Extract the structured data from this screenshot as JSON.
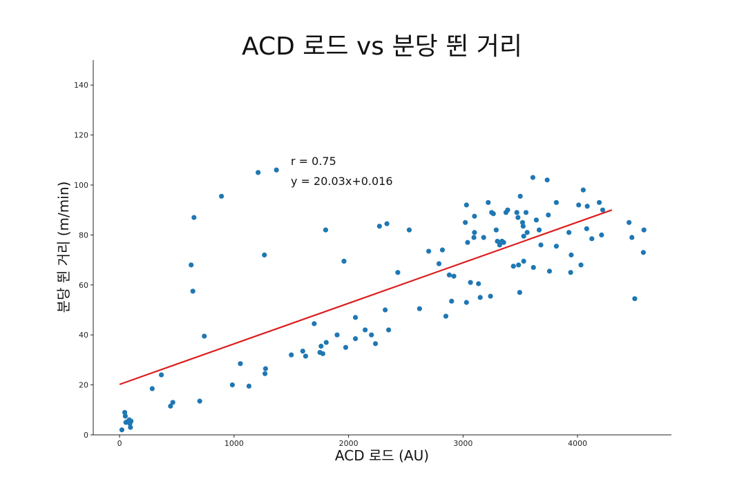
{
  "chart_data": {
    "type": "scatter",
    "title": "ACD 로드 vs 분당 뛴 거리",
    "xlabel": "ACD 로드 (AU)",
    "ylabel": "분당 뛴 거리 (m/min)",
    "xlim": [
      -230,
      4820
    ],
    "ylim": [
      0,
      150
    ],
    "xticks": [
      0,
      1000,
      2000,
      3000,
      4000
    ],
    "yticks": [
      0,
      20,
      40,
      60,
      80,
      100,
      120,
      140
    ],
    "grid": false,
    "point_color": "#1f77b4",
    "fit_color": "#dd1c1c",
    "annotations": [
      "r = 0.75",
      "y = 20.03x+0.016"
    ],
    "fit_line": {
      "x": [
        0,
        4300
      ],
      "y": [
        20.2,
        90.0
      ]
    },
    "points": [
      {
        "x": 20,
        "y": 2
      },
      {
        "x": 45,
        "y": 9
      },
      {
        "x": 50,
        "y": 7.5
      },
      {
        "x": 55,
        "y": 5
      },
      {
        "x": 75,
        "y": 5.5
      },
      {
        "x": 85,
        "y": 6
      },
      {
        "x": 90,
        "y": 4.5
      },
      {
        "x": 95,
        "y": 3
      },
      {
        "x": 100,
        "y": 5.5
      },
      {
        "x": 285,
        "y": 18.5
      },
      {
        "x": 365,
        "y": 24
      },
      {
        "x": 445,
        "y": 11.5
      },
      {
        "x": 465,
        "y": 13
      },
      {
        "x": 625,
        "y": 68
      },
      {
        "x": 640,
        "y": 57.5
      },
      {
        "x": 650,
        "y": 87
      },
      {
        "x": 700,
        "y": 13.5
      },
      {
        "x": 740,
        "y": 39.5
      },
      {
        "x": 890,
        "y": 95.5
      },
      {
        "x": 985,
        "y": 20
      },
      {
        "x": 1055,
        "y": 28.5
      },
      {
        "x": 1130,
        "y": 19.5
      },
      {
        "x": 1210,
        "y": 105
      },
      {
        "x": 1265,
        "y": 72
      },
      {
        "x": 1270,
        "y": 24.5
      },
      {
        "x": 1275,
        "y": 26.5
      },
      {
        "x": 1370,
        "y": 106
      },
      {
        "x": 1500,
        "y": 32
      },
      {
        "x": 1600,
        "y": 33.5
      },
      {
        "x": 1625,
        "y": 31.5
      },
      {
        "x": 1700,
        "y": 44.5
      },
      {
        "x": 1750,
        "y": 33
      },
      {
        "x": 1760,
        "y": 35.5
      },
      {
        "x": 1775,
        "y": 32.5
      },
      {
        "x": 1800,
        "y": 82
      },
      {
        "x": 1805,
        "y": 37
      },
      {
        "x": 1900,
        "y": 40
      },
      {
        "x": 1960,
        "y": 69.5
      },
      {
        "x": 1975,
        "y": 35
      },
      {
        "x": 2060,
        "y": 47
      },
      {
        "x": 2060,
        "y": 38.5
      },
      {
        "x": 2145,
        "y": 42
      },
      {
        "x": 2200,
        "y": 40
      },
      {
        "x": 2235,
        "y": 36.5
      },
      {
        "x": 2270,
        "y": 83.5
      },
      {
        "x": 2320,
        "y": 50
      },
      {
        "x": 2335,
        "y": 84.5
      },
      {
        "x": 2350,
        "y": 42
      },
      {
        "x": 2430,
        "y": 65
      },
      {
        "x": 2530,
        "y": 82
      },
      {
        "x": 2620,
        "y": 50.5
      },
      {
        "x": 2700,
        "y": 73.5
      },
      {
        "x": 2790,
        "y": 68.5
      },
      {
        "x": 2820,
        "y": 74
      },
      {
        "x": 2850,
        "y": 47.5
      },
      {
        "x": 2880,
        "y": 64
      },
      {
        "x": 2900,
        "y": 53.5
      },
      {
        "x": 2920,
        "y": 63.5
      },
      {
        "x": 3020,
        "y": 85
      },
      {
        "x": 3030,
        "y": 53
      },
      {
        "x": 3030,
        "y": 92
      },
      {
        "x": 3040,
        "y": 77
      },
      {
        "x": 3065,
        "y": 61
      },
      {
        "x": 3095,
        "y": 79
      },
      {
        "x": 3100,
        "y": 81
      },
      {
        "x": 3100,
        "y": 87.5
      },
      {
        "x": 3135,
        "y": 60.5
      },
      {
        "x": 3150,
        "y": 55
      },
      {
        "x": 3180,
        "y": 79
      },
      {
        "x": 3220,
        "y": 93
      },
      {
        "x": 3240,
        "y": 55.5
      },
      {
        "x": 3250,
        "y": 89
      },
      {
        "x": 3265,
        "y": 88.5
      },
      {
        "x": 3290,
        "y": 82
      },
      {
        "x": 3300,
        "y": 77.5
      },
      {
        "x": 3320,
        "y": 76
      },
      {
        "x": 3340,
        "y": 77.5
      },
      {
        "x": 3355,
        "y": 77
      },
      {
        "x": 3375,
        "y": 89
      },
      {
        "x": 3390,
        "y": 90
      },
      {
        "x": 3440,
        "y": 67.5
      },
      {
        "x": 3470,
        "y": 89
      },
      {
        "x": 3480,
        "y": 87
      },
      {
        "x": 3485,
        "y": 68
      },
      {
        "x": 3495,
        "y": 57
      },
      {
        "x": 3500,
        "y": 95.5
      },
      {
        "x": 3520,
        "y": 85
      },
      {
        "x": 3525,
        "y": 83.5
      },
      {
        "x": 3530,
        "y": 79.5
      },
      {
        "x": 3530,
        "y": 69.5
      },
      {
        "x": 3550,
        "y": 89
      },
      {
        "x": 3560,
        "y": 81
      },
      {
        "x": 3610,
        "y": 103
      },
      {
        "x": 3615,
        "y": 67
      },
      {
        "x": 3640,
        "y": 86
      },
      {
        "x": 3665,
        "y": 82
      },
      {
        "x": 3680,
        "y": 76
      },
      {
        "x": 3735,
        "y": 102
      },
      {
        "x": 3745,
        "y": 88
      },
      {
        "x": 3755,
        "y": 65.5
      },
      {
        "x": 3815,
        "y": 93
      },
      {
        "x": 3815,
        "y": 75.5
      },
      {
        "x": 3925,
        "y": 81
      },
      {
        "x": 3940,
        "y": 65
      },
      {
        "x": 3945,
        "y": 72
      },
      {
        "x": 4010,
        "y": 92
      },
      {
        "x": 4030,
        "y": 68
      },
      {
        "x": 4050,
        "y": 98
      },
      {
        "x": 4080,
        "y": 82.5
      },
      {
        "x": 4085,
        "y": 91.5
      },
      {
        "x": 4125,
        "y": 78.5
      },
      {
        "x": 4190,
        "y": 93
      },
      {
        "x": 4210,
        "y": 80
      },
      {
        "x": 4220,
        "y": 90
      },
      {
        "x": 4450,
        "y": 85
      },
      {
        "x": 4475,
        "y": 79
      },
      {
        "x": 4500,
        "y": 54.5
      },
      {
        "x": 4575,
        "y": 73
      },
      {
        "x": 4580,
        "y": 82
      }
    ]
  }
}
